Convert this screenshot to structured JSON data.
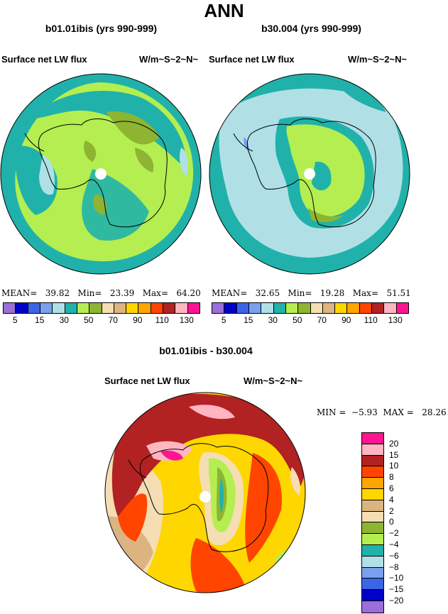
{
  "page_title": "ANN",
  "panels": [
    {
      "case_title": "b01.01ibis (yrs 990-999)",
      "field_label": "Surface net LW flux",
      "units_label": "W/m~S~2~N~",
      "stats": {
        "mean_label": "MEAN=",
        "mean": "39.82",
        "min_label": "Min=",
        "min": "23.39",
        "max_label": "Max=",
        "max": "64.20"
      }
    },
    {
      "case_title": "b30.004 (yrs 990-999)",
      "field_label": "Surface net LW flux",
      "units_label": "W/m~S~2~N~",
      "stats": {
        "mean_label": "MEAN=",
        "mean": "32.65",
        "min_label": "Min=",
        "min": "19.28",
        "max_label": "Max=",
        "max": "51.51"
      }
    }
  ],
  "top_colorbar": {
    "colors": [
      "#9a6fd8",
      "#0000c8",
      "#3c64e6",
      "#7aa0ee",
      "#b0e0e6",
      "#20b2aa",
      "#b4ee50",
      "#8eb432",
      "#f5deb3",
      "#dcb482",
      "#ffd700",
      "#ffa500",
      "#ff4500",
      "#b22222",
      "#ffb6c1",
      "#ff1493"
    ],
    "tick_labels": [
      "5",
      "15",
      "30",
      "50",
      "70",
      "90",
      "110",
      "130"
    ]
  },
  "diff_panel": {
    "title": "b01.01ibis - b30.004",
    "field_label": "Surface net LW flux",
    "units_label": "W/m~S~2~N~",
    "min_label": "MIN =",
    "min": "−5.93",
    "max_label": "MAX =",
    "max": "28.26"
  },
  "diff_colorbar": {
    "colors": [
      "#ff1493",
      "#ffb6c1",
      "#b22222",
      "#ff4500",
      "#ffa500",
      "#ffd700",
      "#dcb482",
      "#f5deb3",
      "#8eb432",
      "#b4ee50",
      "#20b2aa",
      "#b0e0e6",
      "#7aa0ee",
      "#3c64e6",
      "#0000c8",
      "#9a6fd8"
    ],
    "tick_labels": [
      "20",
      "15",
      "10",
      "8",
      "6",
      "4",
      "2",
      "0",
      "−2",
      "−4",
      "−6",
      "−8",
      "−10",
      "−15",
      "−20"
    ]
  }
}
